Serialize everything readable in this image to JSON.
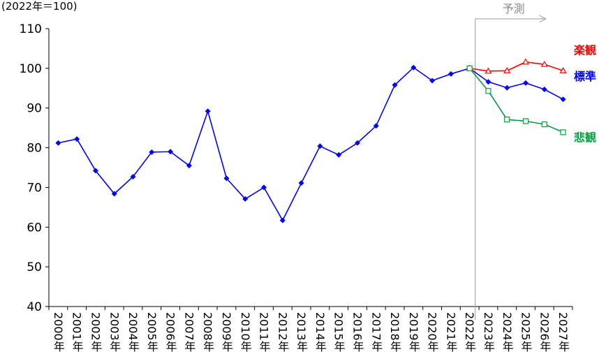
{
  "chart_data": {
    "type": "line",
    "ylabel": "(2022年＝100)",
    "annotation": "予測",
    "categories": [
      "2000年",
      "2001年",
      "2002年",
      "2003年",
      "2004年",
      "2005年",
      "2006年",
      "2007年",
      "2008年",
      "2009年",
      "2010年",
      "2011年",
      "2012年",
      "2013年",
      "2014年",
      "2015年",
      "2016年",
      "2017年",
      "2018年",
      "2019年",
      "2020年",
      "2021年",
      "2022年",
      "2023年",
      "2024年",
      "2025年",
      "2026年",
      "2027年"
    ],
    "series": [
      {
        "name": "楽観",
        "color": "#ff0000",
        "marker": "triangle",
        "values": [
          null,
          null,
          null,
          null,
          null,
          null,
          null,
          null,
          null,
          null,
          null,
          null,
          null,
          null,
          null,
          null,
          null,
          null,
          null,
          null,
          null,
          null,
          100,
          99.3,
          99.4,
          101.6,
          101.0,
          99.4
        ]
      },
      {
        "name": "標準",
        "color": "#0000ff",
        "marker": "diamond",
        "values": [
          81.2,
          82.2,
          74.2,
          68.4,
          72.7,
          78.9,
          79.0,
          75.5,
          89.2,
          72.3,
          67.1,
          70.0,
          61.7,
          71.1,
          80.4,
          78.2,
          81.2,
          85.5,
          95.8,
          100.2,
          96.9,
          98.6,
          100,
          96.6,
          95.1,
          96.3,
          94.7,
          92.2
        ]
      },
      {
        "name": "悲観",
        "color": "#00a040",
        "marker": "square",
        "values": [
          null,
          null,
          null,
          null,
          null,
          null,
          null,
          null,
          null,
          null,
          null,
          null,
          null,
          null,
          null,
          null,
          null,
          null,
          null,
          null,
          null,
          null,
          100,
          94.3,
          87.1,
          86.7,
          85.9,
          83.9
        ]
      }
    ],
    "ylim": [
      40,
      110
    ],
    "yticks": [
      40,
      50,
      60,
      70,
      80,
      90,
      100,
      110
    ],
    "grid": false
  }
}
